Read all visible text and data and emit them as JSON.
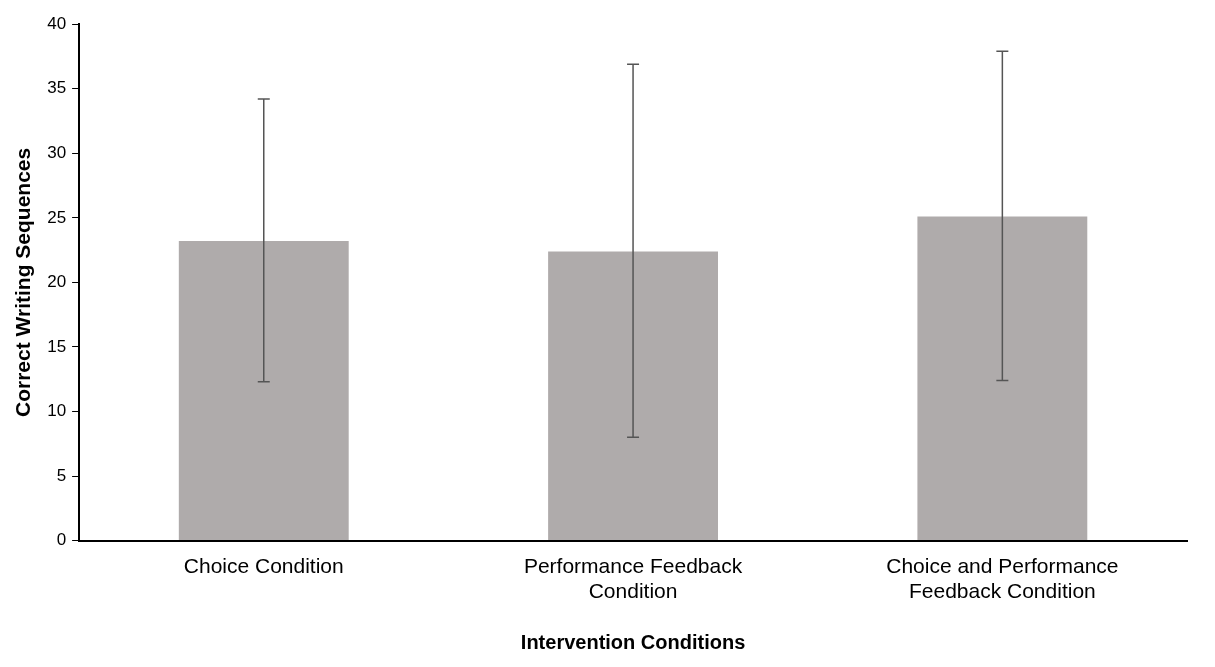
{
  "chart_data": {
    "type": "bar",
    "xlabel": "Intervention Conditions",
    "ylabel": "Correct Writing Sequences",
    "categories": [
      "Choice Condition",
      "Performance Feedback Condition",
      "Choice and Performance Feedback Condition"
    ],
    "values": [
      23.2,
      22.4,
      25.1
    ],
    "color": "#afabab",
    "errors": [
      [
        12.3,
        34.2
      ],
      [
        8.0,
        36.9
      ],
      [
        12.4,
        37.9
      ]
    ],
    "ylim": [
      0,
      40
    ],
    "yticks": [
      0,
      5,
      10,
      15,
      20,
      25,
      30,
      35,
      40
    ],
    "grid": false,
    "legend": false
  }
}
